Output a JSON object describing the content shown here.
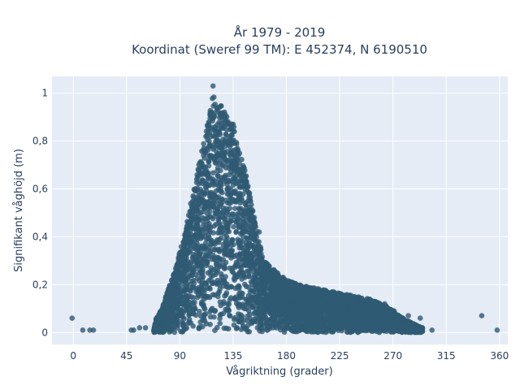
{
  "chart_data": {
    "type": "scatter",
    "title_lines": [
      "År 1979 - 2019",
      "Koordinat (Sweref 99 TM): E 452374, N 6190510"
    ],
    "xlabel": "Vågriktning (grader)",
    "ylabel": "Signifikant våghöjd (m)",
    "xlim": [
      -18,
      367
    ],
    "ylim": [
      -0.05,
      1.07
    ],
    "xticks": [
      0,
      45,
      90,
      135,
      180,
      225,
      270,
      315,
      360
    ],
    "yticks": [
      0,
      0.2,
      0.4,
      0.6,
      0.8,
      1
    ],
    "ytick_labels": [
      "0",
      "0,2",
      "0,4",
      "0,6",
      "0,8",
      "1"
    ],
    "grid": true,
    "colors": {
      "plot_background": "#e5ecf6",
      "grid": "#ffffff",
      "marker": "#2f5a73",
      "text": "#2a3f5f"
    },
    "envelope": {
      "description_points_x": [
        68,
        70,
        75,
        80,
        85,
        90,
        95,
        100,
        105,
        110,
        115,
        118,
        120,
        125,
        130,
        135,
        140,
        145,
        150,
        155,
        160,
        170,
        180,
        190,
        200,
        210,
        220,
        230,
        240,
        250,
        260,
        268,
        275,
        282,
        290,
        295
      ],
      "max_y": [
        0.01,
        0.06,
        0.1,
        0.18,
        0.25,
        0.34,
        0.44,
        0.56,
        0.68,
        0.79,
        0.92,
        1.0,
        0.97,
        0.95,
        0.9,
        0.87,
        0.78,
        0.68,
        0.56,
        0.44,
        0.31,
        0.26,
        0.22,
        0.2,
        0.19,
        0.18,
        0.17,
        0.16,
        0.15,
        0.14,
        0.12,
        0.1,
        0.07,
        0.05,
        0.03,
        0.02
      ]
    },
    "outliers": [
      {
        "x": -1,
        "y": 0.06
      },
      {
        "x": 8,
        "y": 0.01
      },
      {
        "x": 14,
        "y": 0.01
      },
      {
        "x": 17,
        "y": 0.01
      },
      {
        "x": 49,
        "y": 0.01
      },
      {
        "x": 51,
        "y": 0.01
      },
      {
        "x": 56,
        "y": 0.02
      },
      {
        "x": 61,
        "y": 0.02
      },
      {
        "x": 118,
        "y": 1.03
      },
      {
        "x": 135,
        "y": 0.87
      },
      {
        "x": 153,
        "y": 0.35
      },
      {
        "x": 157,
        "y": 0.42
      },
      {
        "x": 212,
        "y": 0.06
      },
      {
        "x": 238,
        "y": 0.01
      },
      {
        "x": 263,
        "y": 0.12
      },
      {
        "x": 271,
        "y": 0.09
      },
      {
        "x": 276,
        "y": 0.06
      },
      {
        "x": 283,
        "y": 0.07
      },
      {
        "x": 285,
        "y": 0.02
      },
      {
        "x": 293,
        "y": 0.06
      },
      {
        "x": 303,
        "y": 0.01
      },
      {
        "x": 345,
        "y": 0.07
      },
      {
        "x": 358,
        "y": 0.01
      }
    ]
  }
}
